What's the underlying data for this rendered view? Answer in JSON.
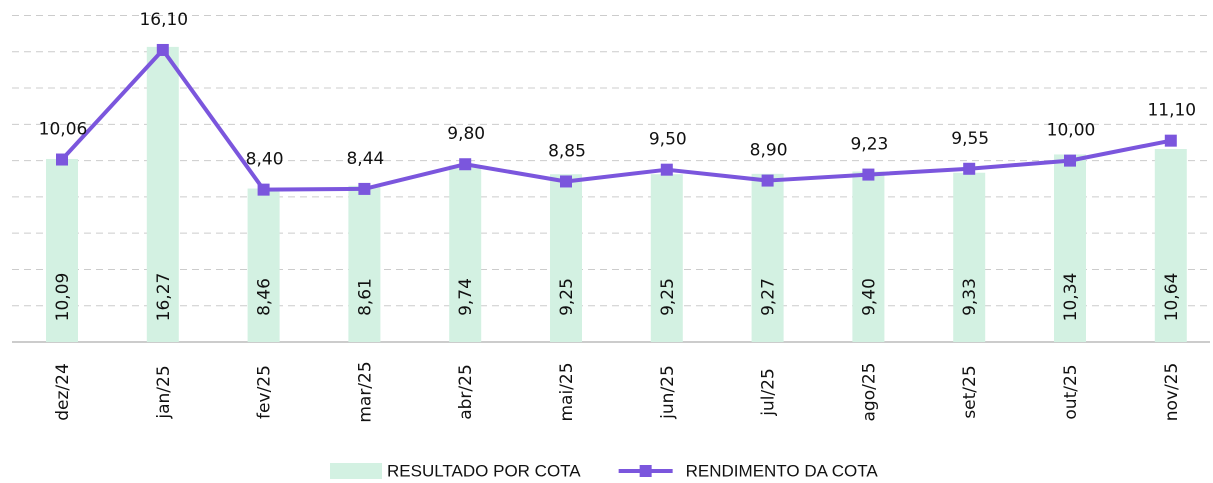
{
  "chart_data": {
    "type": "bar-line",
    "categories": [
      "dez/24",
      "jan/25",
      "fev/25",
      "mar/25",
      "abr/25",
      "mai/25",
      "jun/25",
      "jul/25",
      "ago/25",
      "set/25",
      "out/25",
      "nov/25"
    ],
    "series": [
      {
        "name": "RESULTADO POR COTA",
        "type": "bar",
        "color": "#d3f1e2",
        "values": [
          10.09,
          16.27,
          8.46,
          8.61,
          9.74,
          9.25,
          9.25,
          9.27,
          9.4,
          9.33,
          10.34,
          10.64
        ],
        "value_labels": [
          "10,09",
          "16,27",
          "8,46",
          "8,61",
          "9,74",
          "9,25",
          "9,25",
          "9,27",
          "9,40",
          "9,33",
          "10,34",
          "10,64"
        ]
      },
      {
        "name": "RENDIMENTO DA COTA",
        "type": "line",
        "color": "#7b56dd",
        "values": [
          10.06,
          16.1,
          8.4,
          8.44,
          9.8,
          8.85,
          9.5,
          8.9,
          9.23,
          9.55,
          10.0,
          11.1
        ],
        "value_labels": [
          "10,06",
          "16,10",
          "8,40",
          "8,44",
          "9,80",
          "8,85",
          "9,50",
          "8,90",
          "9,23",
          "9,55",
          "10,00",
          "11,10"
        ]
      }
    ],
    "ylim": [
      0,
      18
    ],
    "yticks": [
      0,
      2,
      4,
      6,
      8,
      10,
      12,
      14,
      16,
      18
    ],
    "grid": true,
    "legend": "bottom"
  }
}
